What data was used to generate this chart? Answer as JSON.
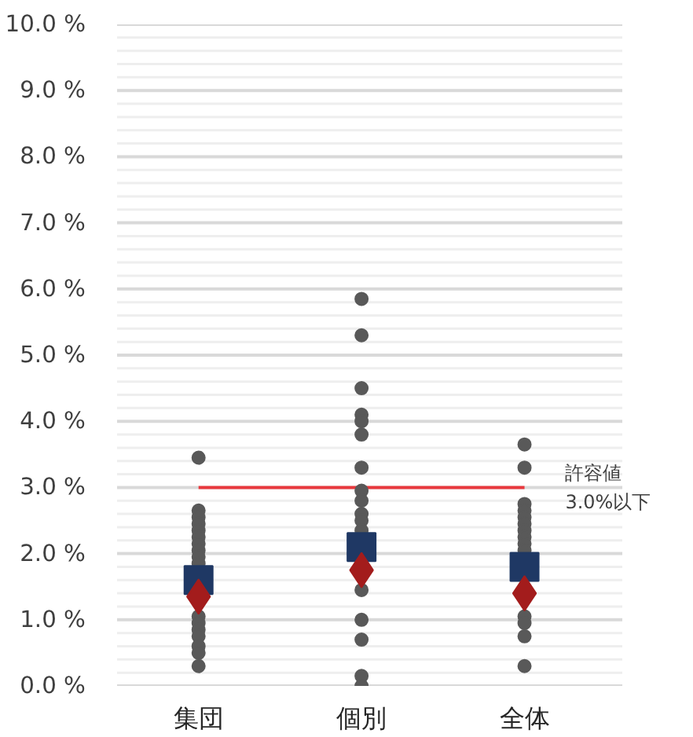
{
  "chart_data": {
    "type": "scatter",
    "categories": [
      "集団",
      "個別",
      "全体"
    ],
    "ylim": [
      0,
      10
    ],
    "yticks": [
      {
        "value": 0,
        "label": "0.0 %"
      },
      {
        "value": 1,
        "label": "1.0 %"
      },
      {
        "value": 2,
        "label": "2.0 %"
      },
      {
        "value": 3,
        "label": "3.0 %"
      },
      {
        "value": 4,
        "label": "4.0 %"
      },
      {
        "value": 5,
        "label": "5.0 %"
      },
      {
        "value": 6,
        "label": "6.0 %"
      },
      {
        "value": 7,
        "label": "7.0 %"
      },
      {
        "value": 8,
        "label": "8.0 %"
      },
      {
        "value": 9,
        "label": "9.0 %"
      },
      {
        "value": 10,
        "label": "10.0 %"
      }
    ],
    "grid": "y",
    "series": [
      {
        "color": "#595959",
        "marker": "circle",
        "x": [
          "集団",
          "集団",
          "集団",
          "集団",
          "集団",
          "集団",
          "集団",
          "集団",
          "集団",
          "集団",
          "集団",
          "集団",
          "集団",
          "集団",
          "集団",
          "集団",
          "集団",
          "個別",
          "個別",
          "個別",
          "個別",
          "個別",
          "個別",
          "個別",
          "個別",
          "個別",
          "個別",
          "個別",
          "個別",
          "個別",
          "個別",
          "個別",
          "個別",
          "個別",
          "全体",
          "全体",
          "全体",
          "全体",
          "全体",
          "全体",
          "全体",
          "全体",
          "全体",
          "全体",
          "全体",
          "全体",
          "全体",
          "全体"
        ],
        "values": [
          3.45,
          2.65,
          2.55,
          2.45,
          2.35,
          2.25,
          2.15,
          2.05,
          1.95,
          1.85,
          1.05,
          0.95,
          0.85,
          0.75,
          0.6,
          0.5,
          0.3,
          5.85,
          5.3,
          4.5,
          4.1,
          4.0,
          3.8,
          3.3,
          2.95,
          2.8,
          2.6,
          2.5,
          2.35,
          1.45,
          1.0,
          0.7,
          0.15,
          0.0,
          3.65,
          3.3,
          2.75,
          2.65,
          2.55,
          2.45,
          2.35,
          2.25,
          2.15,
          2.05,
          1.05,
          0.95,
          0.75,
          0.3
        ]
      },
      {
        "color": "#1f3864",
        "marker": "square",
        "x": [
          "集団",
          "個別",
          "全体"
        ],
        "values": [
          1.6,
          2.1,
          1.8
        ]
      },
      {
        "color": "#a31c1c",
        "marker": "diamond",
        "x": [
          "集団",
          "個別",
          "全体"
        ],
        "values": [
          1.35,
          1.75,
          1.4
        ]
      }
    ],
    "ref_lines": [
      {
        "axis": "y",
        "value": 3.0,
        "label": "許容値\n3.0%以下",
        "color": "#e8383d"
      }
    ]
  }
}
